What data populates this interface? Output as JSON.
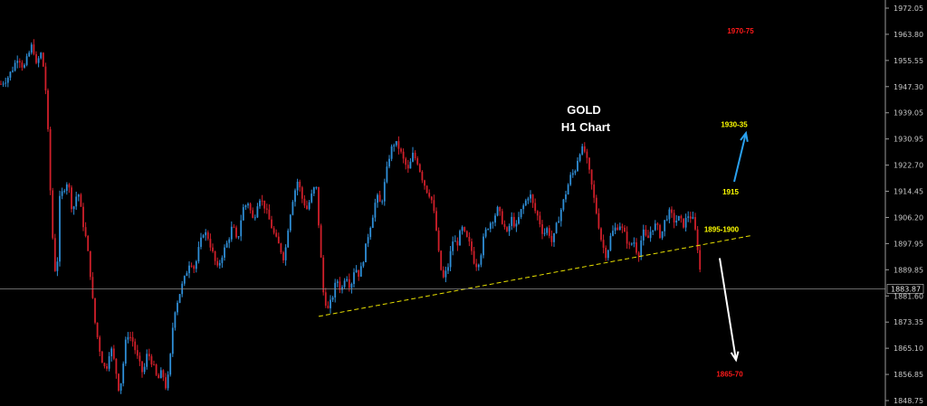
{
  "chart_data": {
    "type": "candlestick",
    "title": "GOLD",
    "subtitle": "H1 Chart",
    "ylim": [
      1847,
      1978
    ],
    "y_ticks": [
      "1972.05",
      "1963.80",
      "1955.55",
      "1947.30",
      "1939.05",
      "1930.95",
      "1922.70",
      "1914.45",
      "1906.20",
      "1897.95",
      "1889.85",
      "1881.60",
      "1873.35",
      "1865.10",
      "1856.85",
      "1848.75"
    ],
    "current_price": {
      "value": 1883.87,
      "label": "1883.87"
    },
    "grid": false,
    "colors": {
      "up": "#2f8fd8",
      "down": "#d11f2a",
      "background": "#000000",
      "trendline": "#e8e000",
      "arrow_up": "#2aa0ee",
      "arrow_down": "#ffffff",
      "target_red": "#ff1a1a",
      "level_yellow": "#ffff00"
    },
    "path_points": [
      [
        0,
        1948
      ],
      [
        8,
        1950
      ],
      [
        14,
        1953
      ],
      [
        20,
        1957
      ],
      [
        26,
        1953
      ],
      [
        31,
        1957
      ],
      [
        36,
        1961
      ],
      [
        40,
        1954
      ],
      [
        45,
        1958
      ],
      [
        49,
        1952
      ],
      [
        52,
        1940
      ],
      [
        56,
        1912
      ],
      [
        60,
        1890
      ],
      [
        63,
        1890
      ],
      [
        66,
        1912
      ],
      [
        70,
        1915
      ],
      [
        75,
        1918
      ],
      [
        80,
        1908
      ],
      [
        86,
        1915
      ],
      [
        92,
        1904
      ],
      [
        96,
        1898
      ],
      [
        100,
        1888
      ],
      [
        104,
        1875
      ],
      [
        108,
        1868
      ],
      [
        112,
        1862
      ],
      [
        117,
        1858
      ],
      [
        122,
        1866
      ],
      [
        127,
        1860
      ],
      [
        132,
        1851
      ],
      [
        136,
        1860
      ],
      [
        140,
        1870
      ],
      [
        146,
        1868
      ],
      [
        152,
        1862
      ],
      [
        158,
        1857
      ],
      [
        163,
        1864
      ],
      [
        169,
        1860
      ],
      [
        174,
        1855
      ],
      [
        179,
        1858
      ],
      [
        184,
        1852
      ],
      [
        188,
        1862
      ],
      [
        192,
        1876
      ],
      [
        196,
        1880
      ],
      [
        200,
        1884
      ],
      [
        205,
        1888
      ],
      [
        210,
        1893
      ],
      [
        215,
        1890
      ],
      [
        220,
        1897
      ],
      [
        225,
        1902
      ],
      [
        230,
        1900
      ],
      [
        235,
        1895
      ],
      [
        240,
        1890
      ],
      [
        246,
        1895
      ],
      [
        252,
        1899
      ],
      [
        257,
        1904
      ],
      [
        262,
        1898
      ],
      [
        268,
        1909
      ],
      [
        274,
        1911
      ],
      [
        280,
        1905
      ],
      [
        286,
        1913
      ],
      [
        292,
        1910
      ],
      [
        298,
        1905
      ],
      [
        304,
        1900
      ],
      [
        309,
        1897
      ],
      [
        314,
        1893
      ],
      [
        319,
        1905
      ],
      [
        324,
        1913
      ],
      [
        329,
        1918
      ],
      [
        334,
        1912
      ],
      [
        339,
        1909
      ],
      [
        344,
        1913
      ],
      [
        349,
        1917
      ],
      [
        353,
        1900
      ],
      [
        357,
        1883
      ],
      [
        362,
        1877
      ],
      [
        367,
        1881
      ],
      [
        372,
        1887
      ],
      [
        377,
        1883
      ],
      [
        382,
        1889
      ],
      [
        387,
        1884
      ],
      [
        392,
        1891
      ],
      [
        397,
        1888
      ],
      [
        402,
        1894
      ],
      [
        406,
        1900
      ],
      [
        411,
        1906
      ],
      [
        416,
        1913
      ],
      [
        421,
        1910
      ],
      [
        426,
        1919
      ],
      [
        431,
        1927
      ],
      [
        436,
        1930
      ],
      [
        441,
        1928
      ],
      [
        446,
        1924
      ],
      [
        451,
        1921
      ],
      [
        456,
        1926
      ],
      [
        461,
        1924
      ],
      [
        466,
        1919
      ],
      [
        471,
        1915
      ],
      [
        476,
        1913
      ],
      [
        481,
        1905
      ],
      [
        486,
        1891
      ],
      [
        490,
        1887
      ],
      [
        495,
        1891
      ],
      [
        500,
        1899
      ],
      [
        505,
        1898
      ],
      [
        510,
        1903
      ],
      [
        515,
        1900
      ],
      [
        520,
        1897
      ],
      [
        525,
        1891
      ],
      [
        530,
        1893
      ],
      [
        535,
        1901
      ],
      [
        540,
        1904
      ],
      [
        545,
        1906
      ],
      [
        550,
        1909
      ],
      [
        555,
        1905
      ],
      [
        560,
        1901
      ],
      [
        565,
        1906
      ],
      [
        570,
        1903
      ],
      [
        575,
        1908
      ],
      [
        580,
        1911
      ],
      [
        585,
        1914
      ],
      [
        590,
        1909
      ],
      [
        595,
        1906
      ],
      [
        600,
        1901
      ],
      [
        605,
        1903
      ],
      [
        610,
        1898
      ],
      [
        615,
        1904
      ],
      [
        620,
        1909
      ],
      [
        625,
        1914
      ],
      [
        630,
        1919
      ],
      [
        635,
        1921
      ],
      [
        640,
        1927
      ],
      [
        645,
        1928
      ],
      [
        650,
        1922
      ],
      [
        655,
        1914
      ],
      [
        660,
        1906
      ],
      [
        665,
        1898
      ],
      [
        670,
        1894
      ],
      [
        675,
        1901
      ],
      [
        680,
        1903
      ],
      [
        685,
        1904
      ],
      [
        690,
        1901
      ],
      [
        695,
        1897
      ],
      [
        700,
        1899
      ],
      [
        705,
        1894
      ],
      [
        710,
        1902
      ],
      [
        715,
        1899
      ],
      [
        720,
        1903
      ],
      [
        725,
        1904
      ],
      [
        730,
        1900
      ],
      [
        735,
        1906
      ],
      [
        740,
        1908
      ],
      [
        745,
        1905
      ],
      [
        750,
        1906
      ],
      [
        755,
        1904
      ],
      [
        760,
        1907
      ],
      [
        765,
        1906
      ],
      [
        768,
        1902
      ],
      [
        770,
        1898
      ],
      [
        772,
        1894
      ],
      [
        774,
        1887
      ],
      [
        775,
        1883
      ]
    ],
    "trendline": {
      "from": [
        352,
        1875.2
      ],
      "to": [
        830,
        1900.6
      ]
    },
    "annotations": [
      {
        "text": "1970-75",
        "x": 818,
        "y": 1965.0,
        "color": "#ff1a1a",
        "size": 8
      },
      {
        "text": "1930-35",
        "x": 811,
        "y": 1935.5,
        "color": "#ffff00",
        "size": 8
      },
      {
        "text": "1915",
        "x": 807,
        "y": 1914.4,
        "color": "#ffff00",
        "size": 8
      },
      {
        "text": "1895-1900",
        "x": 797,
        "y": 1902.6,
        "color": "#ffff00",
        "size": 8
      },
      {
        "text": "1865-70",
        "x": 806,
        "y": 1857.1,
        "color": "#ff1a1a",
        "size": 8
      }
    ],
    "arrows": [
      {
        "from": [
          811,
          1917.5
        ],
        "to": [
          824,
          1932.8
        ],
        "color": "#2aa0ee"
      },
      {
        "from": [
          795,
          1893.5
        ],
        "to": [
          813,
          1861.5
        ],
        "color": "#ffffff"
      }
    ]
  }
}
